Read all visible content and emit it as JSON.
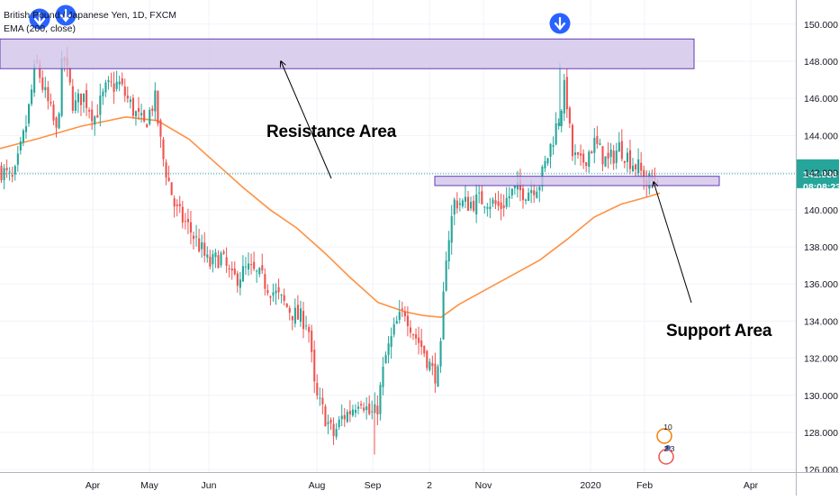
{
  "legend": {
    "symbol_line": "British Pound / Japanese Yen, 1D, FXCM",
    "indicator_line": "EMA (200, close)"
  },
  "annotations": {
    "resistance": "Resistance Area",
    "support": "Support Area"
  },
  "price_badge": {
    "price": "141.936",
    "countdown": "08:08:23",
    "color": "#26a69a"
  },
  "event_badges": [
    "10",
    "2",
    "3"
  ],
  "colors": {
    "up": "#26a69a",
    "down": "#ef5350",
    "ema": "#ff9142",
    "zone_fill": "#d1c4e9",
    "zone_stroke": "#673ab7",
    "arrow_marker": "#2962ff",
    "grid": "#f0f3fa"
  },
  "chart_data": {
    "type": "candlestick",
    "title": "British Pound / Japanese Yen, 1D, FXCM",
    "y_ticks": [
      "126.000",
      "128.000",
      "130.000",
      "132.000",
      "134.000",
      "136.000",
      "138.000",
      "140.000",
      "142.000",
      "144.000",
      "146.000",
      "148.000",
      "150.000"
    ],
    "ylim": [
      124.6,
      151.3
    ],
    "x_ticks": [
      "Apr",
      "May",
      "Jun",
      "Aug",
      "Sep",
      "2",
      "Nov",
      "2020",
      "Feb",
      "Apr"
    ],
    "current_price": 141.936,
    "series": [
      {
        "name": "GBP/JPY close path",
        "points": [
          [
            0,
            142.2
          ],
          [
            15,
            141.5
          ],
          [
            30,
            144.8
          ],
          [
            40,
            148.0
          ],
          [
            48,
            146.5
          ],
          [
            58,
            145.0
          ],
          [
            63,
            144.0
          ],
          [
            70,
            148.5
          ],
          [
            82,
            145.5
          ],
          [
            92,
            146.2
          ],
          [
            105,
            145.0
          ],
          [
            118,
            146.5
          ],
          [
            132,
            146.8
          ],
          [
            150,
            145.2
          ],
          [
            160,
            144.5
          ],
          [
            172,
            146.0
          ],
          [
            180,
            143.0
          ],
          [
            195,
            140.0
          ],
          [
            210,
            139.0
          ],
          [
            222,
            138.0
          ],
          [
            232,
            137.0
          ],
          [
            245,
            137.5
          ],
          [
            258,
            136.2
          ],
          [
            275,
            136.8
          ],
          [
            290,
            136.3
          ],
          [
            305,
            135.5
          ],
          [
            318,
            134.8
          ],
          [
            330,
            134.2
          ],
          [
            342,
            134.0
          ],
          [
            350,
            130.0
          ],
          [
            360,
            129.0
          ],
          [
            370,
            127.8
          ],
          [
            380,
            128.8
          ],
          [
            390,
            129.2
          ],
          [
            400,
            130.0
          ],
          [
            410,
            129.0
          ],
          [
            418,
            129.0
          ],
          [
            428,
            132.0
          ],
          [
            440,
            133.8
          ],
          [
            450,
            134.6
          ],
          [
            460,
            133.3
          ],
          [
            470,
            132.5
          ],
          [
            480,
            131.3
          ],
          [
            488,
            131.0
          ],
          [
            495,
            137.5
          ],
          [
            505,
            140.5
          ],
          [
            515,
            140.3
          ],
          [
            525,
            140.4
          ],
          [
            540,
            140.6
          ],
          [
            555,
            140.1
          ],
          [
            570,
            141.0
          ],
          [
            585,
            141.0
          ],
          [
            600,
            141.5
          ],
          [
            612,
            143.5
          ],
          [
            622,
            145.2
          ],
          [
            628,
            146.8
          ],
          [
            635,
            143.0
          ],
          [
            645,
            142.4
          ],
          [
            660,
            143.6
          ],
          [
            675,
            142.5
          ],
          [
            688,
            143.4
          ],
          [
            700,
            142.7
          ],
          [
            710,
            142.2
          ],
          [
            718,
            141.4
          ],
          [
            726,
            141.7
          ],
          [
            733,
            141.936
          ]
        ]
      },
      {
        "name": "EMA (200, close)",
        "points": [
          [
            0,
            143.3
          ],
          [
            40,
            143.8
          ],
          [
            90,
            144.5
          ],
          [
            140,
            145.0
          ],
          [
            175,
            144.8
          ],
          [
            210,
            143.8
          ],
          [
            240,
            142.5
          ],
          [
            270,
            141.2
          ],
          [
            300,
            140.0
          ],
          [
            330,
            139.0
          ],
          [
            360,
            137.7
          ],
          [
            390,
            136.3
          ],
          [
            420,
            135.0
          ],
          [
            450,
            134.5
          ],
          [
            470,
            134.3
          ],
          [
            490,
            134.2
          ],
          [
            510,
            134.9
          ],
          [
            540,
            135.7
          ],
          [
            570,
            136.5
          ],
          [
            600,
            137.3
          ],
          [
            630,
            138.4
          ],
          [
            660,
            139.6
          ],
          [
            690,
            140.3
          ],
          [
            720,
            140.7
          ],
          [
            733,
            140.9
          ]
        ]
      }
    ],
    "zones": [
      {
        "label": "Resistance Area",
        "y_top": 149.2,
        "y_bottom": 147.6
      },
      {
        "label": "Support Area",
        "y_top": 141.8,
        "y_bottom": 141.3
      }
    ],
    "markers": [
      {
        "type": "arrow-down",
        "near_y": 149.8
      },
      {
        "type": "arrow-down",
        "near_y": 149.8
      },
      {
        "type": "arrow-down",
        "near_y": 149.8
      }
    ],
    "grid": true,
    "legend": "top-left"
  }
}
